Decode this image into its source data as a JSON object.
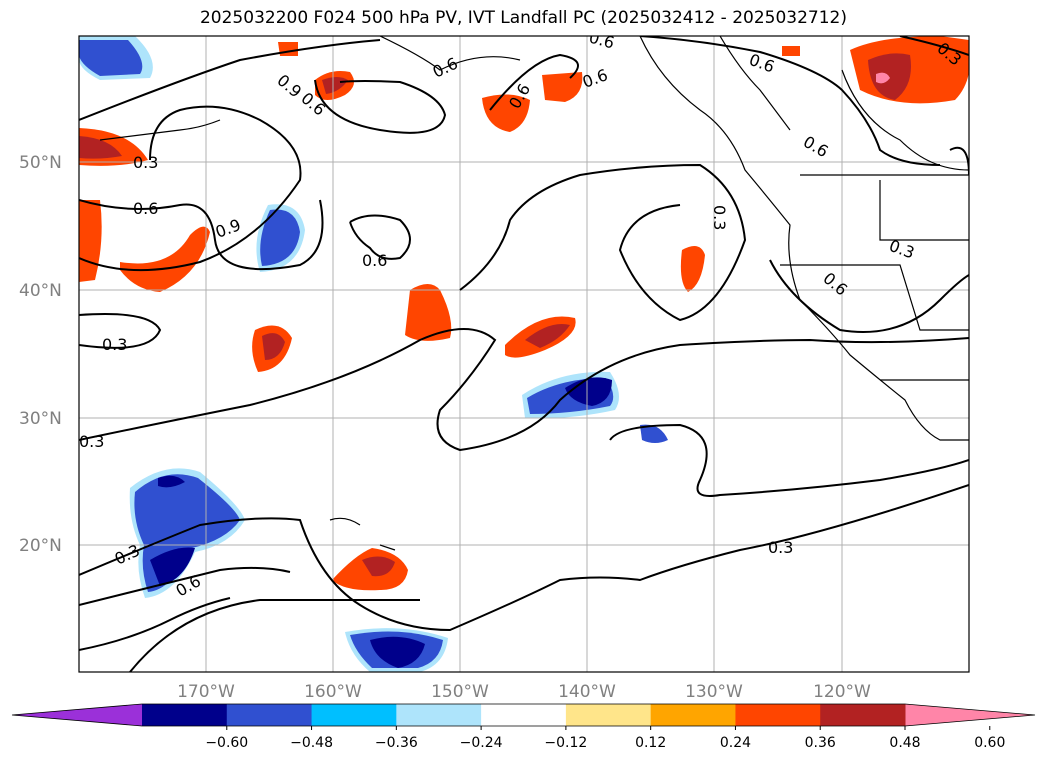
{
  "title": "2025032200 F024 500 hPa PV, IVT Landfall PC (2025032412 - 2025032712)",
  "lat_labels": [
    "50°N",
    "40°N",
    "30°N",
    "20°N"
  ],
  "lon_labels": [
    "170°W",
    "160°W",
    "150°W",
    "140°W",
    "130°W",
    "120°W"
  ],
  "contour_labels": [
    "0.9",
    "0.6",
    "0.3",
    "0.6",
    "0.9",
    "0.6",
    "0.3",
    "0.3",
    "0.6",
    "0.6",
    "0.6",
    "0.6",
    "0.6",
    "0.3",
    "0.3",
    "0.6",
    "0.3",
    "0.3",
    "0.6",
    "0.3",
    "0.6"
  ],
  "colorbar": {
    "colors": [
      "#9b30d9",
      "#00008b",
      "#3050d0",
      "#00bfff",
      "#aee4fb",
      "#ffffff",
      "#ffe58a",
      "#ffa500",
      "#ff4500",
      "#b22222",
      "#ff85a8"
    ],
    "tick_labels": [
      "−0.60",
      "−0.48",
      "−0.36",
      "−0.24",
      "−0.12",
      "0.12",
      "0.24",
      "0.36",
      "0.48",
      "0.60"
    ]
  }
}
